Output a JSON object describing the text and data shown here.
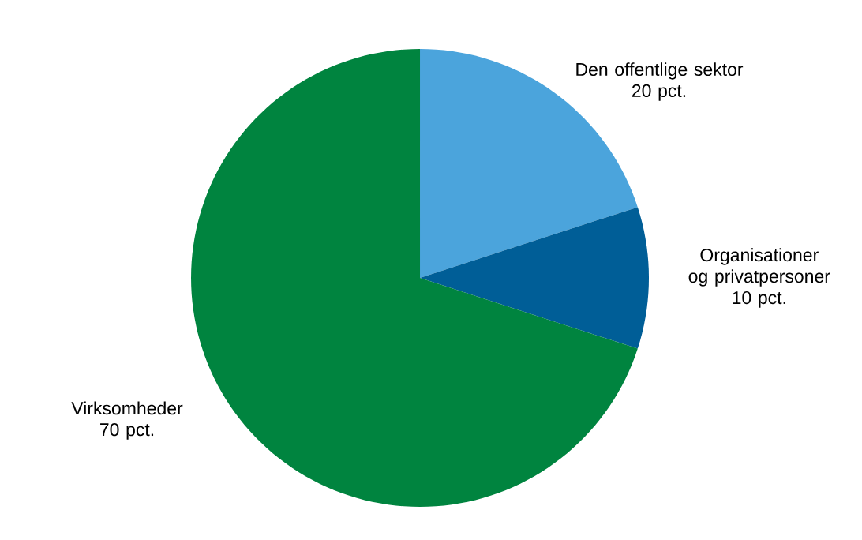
{
  "chart_data": {
    "type": "pie",
    "categories": [
      "Den offentlige sektor",
      "Organisationer og privatpersoner",
      "Virksomheder"
    ],
    "values": [
      20,
      10,
      70
    ],
    "colors": [
      "#4ba4dc",
      "#005e97",
      "#00843f"
    ],
    "value_labels": [
      "20 pct.",
      "10 pct.",
      "70 pct."
    ]
  }
}
